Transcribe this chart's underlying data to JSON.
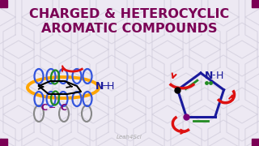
{
  "title_line1": "CHARGED & HETEROCYCLIC",
  "title_line2": "AROMATIC COMPOUNDS",
  "title_color": "#7B0055",
  "bg_color": "#ede9f3",
  "watermark": "Leah4Sci",
  "corner_color": "#7B0055",
  "hex_color": "#ccc8d8",
  "orange": "#FFA500",
  "blue": "#3355DD",
  "green": "#228B22",
  "red": "#DD1111",
  "purple": "#7B0077",
  "darkblue": "#1a1a9c",
  "gray": "#888888"
}
